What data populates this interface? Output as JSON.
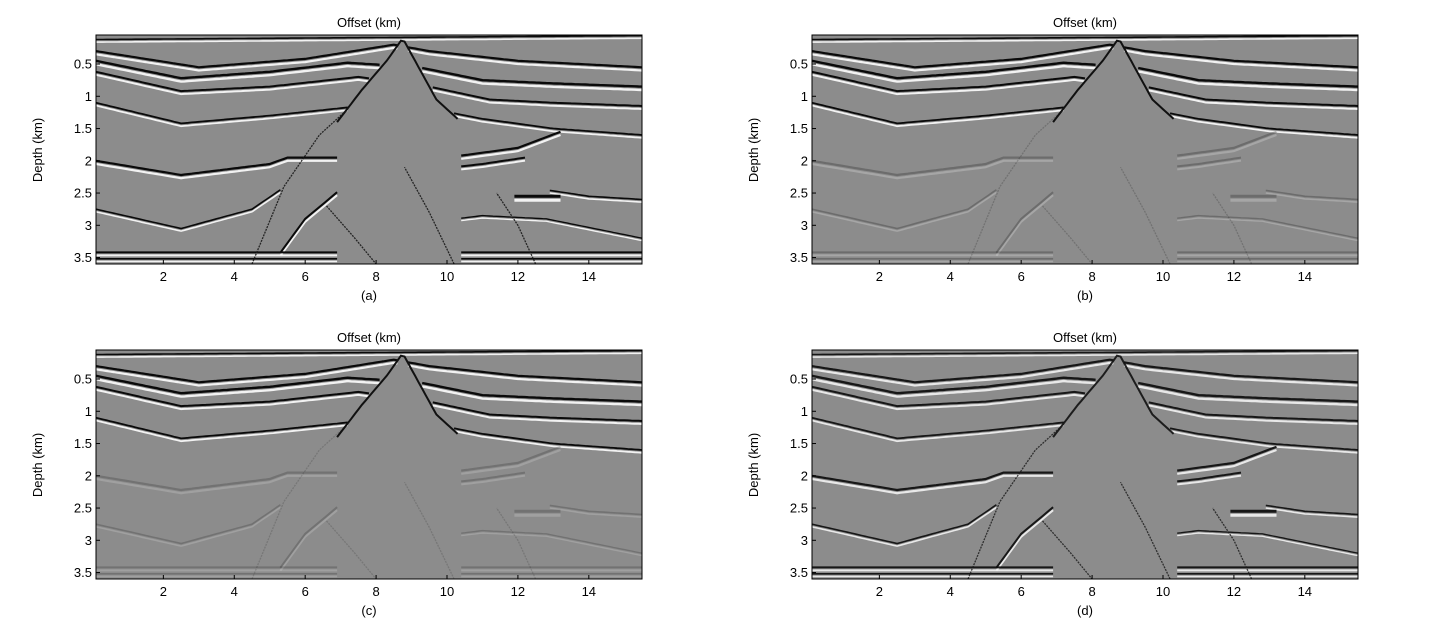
{
  "chart_data": [
    {
      "type": "heatmap",
      "panel_label": "(a)",
      "title": "Offset (km)",
      "xlabel": "",
      "ylabel": "Depth (km)",
      "xlim": [
        0.1,
        15.5
      ],
      "ylim": [
        3.6,
        0.05
      ],
      "x_ticks": [
        2,
        4,
        6,
        8,
        10,
        12,
        14
      ],
      "y_ticks": [
        0.5,
        1,
        1.5,
        2,
        2.5,
        3,
        3.5
      ],
      "x_tick_labels": [
        "2",
        "4",
        "6",
        "8",
        "10",
        "12",
        "14"
      ],
      "y_tick_labels": [
        "0.5",
        "1",
        "1.5",
        "2",
        "2.5",
        "3",
        "3.5"
      ],
      "colormap": "grayscale",
      "background_color": "#8c8c8c",
      "content": "seismic depth image, sharp reflectors, strong deep events",
      "amplitude": {
        "shallow": 1.0,
        "deep": 1.0
      }
    },
    {
      "type": "heatmap",
      "panel_label": "(b)",
      "title": "Offset (km)",
      "xlabel": "",
      "ylabel": "Depth (km)",
      "xlim": [
        0.1,
        15.5
      ],
      "ylim": [
        3.6,
        0.05
      ],
      "x_ticks": [
        2,
        4,
        6,
        8,
        10,
        12,
        14
      ],
      "y_ticks": [
        0.5,
        1,
        1.5,
        2,
        2.5,
        3,
        3.5
      ],
      "x_tick_labels": [
        "2",
        "4",
        "6",
        "8",
        "10",
        "12",
        "14"
      ],
      "y_tick_labels": [
        "0.5",
        "1",
        "1.5",
        "2",
        "2.5",
        "3",
        "3.5"
      ],
      "colormap": "grayscale",
      "background_color": "#8c8c8c",
      "content": "seismic depth image, strong shallow reflectors, weak deep events",
      "amplitude": {
        "shallow": 1.0,
        "deep": 0.25
      }
    },
    {
      "type": "heatmap",
      "panel_label": "(c)",
      "title": "Offset (km)",
      "xlabel": "",
      "ylabel": "Depth (km)",
      "xlim": [
        0.1,
        15.5
      ],
      "ylim": [
        3.6,
        0.05
      ],
      "x_ticks": [
        2,
        4,
        6,
        8,
        10,
        12,
        14
      ],
      "y_ticks": [
        0.5,
        1,
        1.5,
        2,
        2.5,
        3,
        3.5
      ],
      "x_tick_labels": [
        "2",
        "4",
        "6",
        "8",
        "10",
        "12",
        "14"
      ],
      "y_tick_labels": [
        "0.5",
        "1",
        "1.5",
        "2",
        "2.5",
        "3",
        "3.5"
      ],
      "colormap": "grayscale",
      "background_color": "#8c8c8c",
      "content": "seismic depth image, strong shallow reflectors, very weak deep events",
      "amplitude": {
        "shallow": 1.0,
        "deep": 0.2
      }
    },
    {
      "type": "heatmap",
      "panel_label": "(d)",
      "title": "Offset (km)",
      "xlabel": "",
      "ylabel": "Depth (km)",
      "xlim": [
        0.1,
        15.5
      ],
      "ylim": [
        3.6,
        0.05
      ],
      "x_ticks": [
        2,
        4,
        6,
        8,
        10,
        12,
        14
      ],
      "y_ticks": [
        0.5,
        1,
        1.5,
        2,
        2.5,
        3,
        3.5
      ],
      "x_tick_labels": [
        "2",
        "4",
        "6",
        "8",
        "10",
        "12",
        "14"
      ],
      "y_tick_labels": [
        "0.5",
        "1",
        "1.5",
        "2",
        "2.5",
        "3",
        "3.5"
      ],
      "colormap": "grayscale",
      "background_color": "#8c8c8c",
      "content": "seismic depth image, balanced amplitude, thin reflectors",
      "amplitude": {
        "shallow": 0.9,
        "deep": 0.9
      }
    }
  ]
}
